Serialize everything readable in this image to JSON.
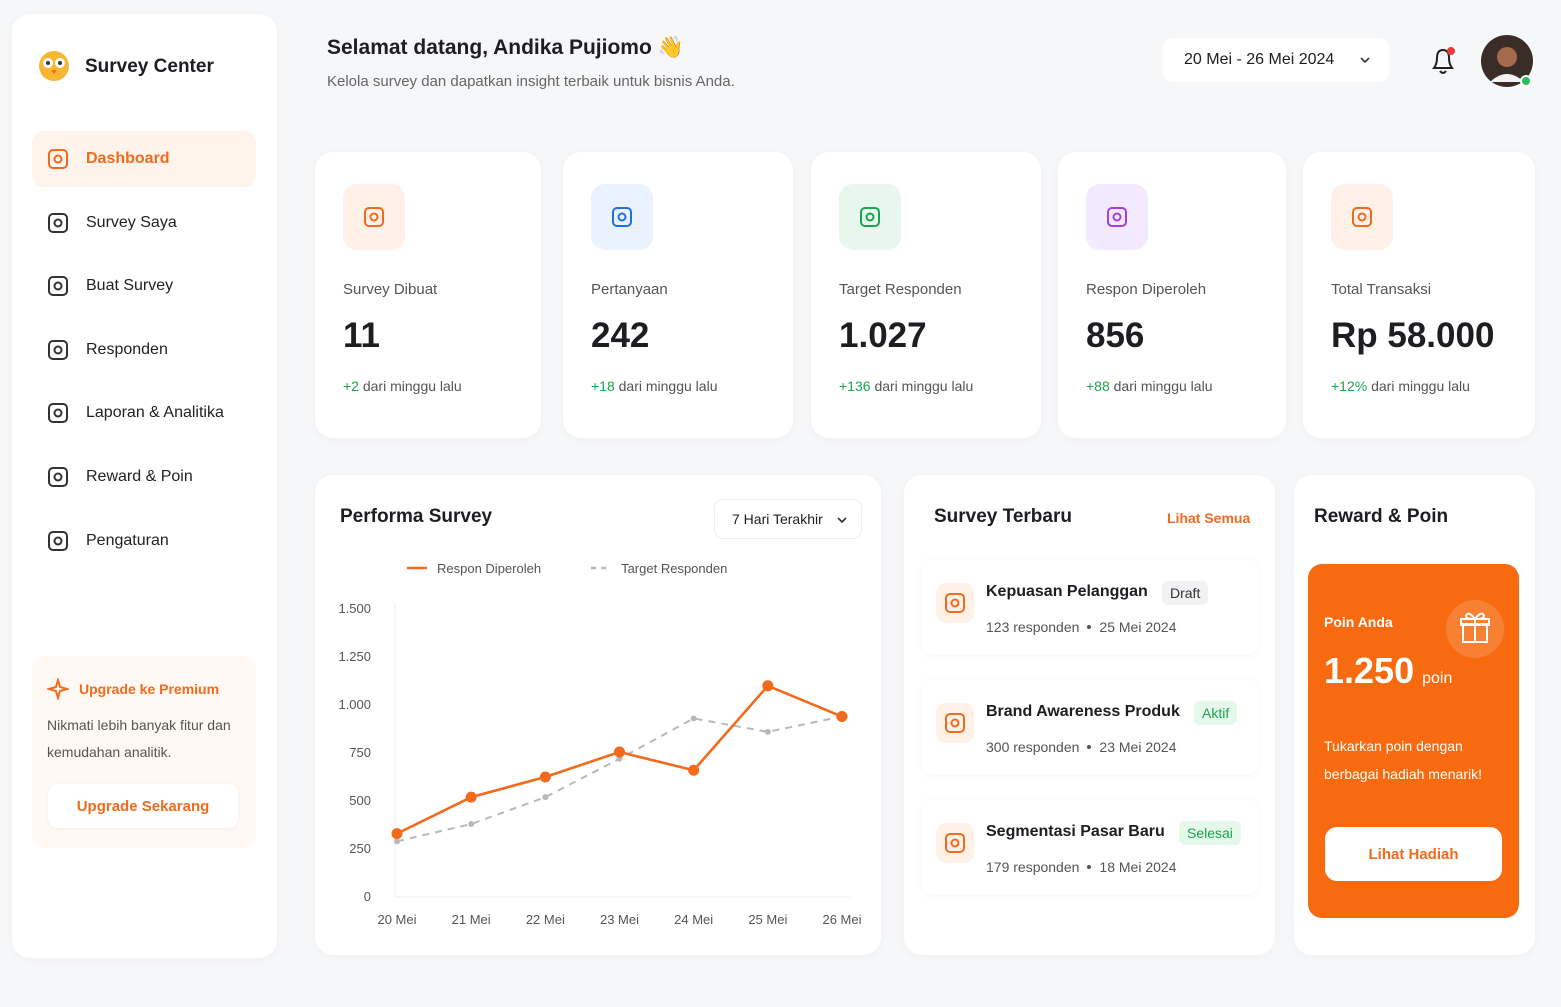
{
  "sidebar": {
    "brand": "Survey Center",
    "menu": [
      "Dashboard",
      "Survey Saya",
      "Buat Survey",
      "Responden",
      "Laporan & Analitika",
      "Reward & Poin",
      "Pengaturan"
    ],
    "promo": {
      "title": "Upgrade ke Premium",
      "text": "Nikmati lebih banyak fitur dan kemudahan analitik.",
      "button": "Upgrade Sekarang"
    }
  },
  "header": {
    "greeting": "Selamat datang, Andika Pujiomo 👋",
    "subtitle": "Kelola survey dan dapatkan insight terbaik untuk bisnis Anda.",
    "date_range": "20 Mei - 26 Mei 2024"
  },
  "stats": [
    {
      "label": "Survey Dibuat",
      "value": "11",
      "change": "+2",
      "note": "dari minggu lalu"
    },
    {
      "label": "Pertanyaan",
      "value": "242",
      "change": "+18",
      "note": "dari minggu lalu"
    },
    {
      "label": "Target Responden",
      "value": "1.027",
      "change": "+136",
      "note": "dari minggu lalu"
    },
    {
      "label": "Respon Diperoleh",
      "value": "856",
      "change": "+88",
      "note": "dari minggu lalu"
    },
    {
      "label": "Total Transaksi",
      "value": "Rp 58.000",
      "change": "+12%",
      "note": "dari minggu lalu"
    }
  ],
  "chart_filter": "7 Hari Terakhir",
  "chart_data": {
    "type": "line",
    "title": "Performa Survey",
    "categories": [
      "20 Mei",
      "21 Mei",
      "22 Mei",
      "23 Mei",
      "24 Mei",
      "25 Mei",
      "26 Mei"
    ],
    "series": [
      {
        "name": "Respon Diperoleh",
        "color": "#f26a1b",
        "dashed": false,
        "values": [
          330,
          520,
          625,
          755,
          660,
          1100,
          940
        ]
      },
      {
        "name": "Target Responden",
        "color": "#b9b9bd",
        "dashed": true,
        "values": [
          290,
          380,
          520,
          720,
          930,
          860,
          940
        ]
      }
    ],
    "ylim": [
      0,
      1500
    ],
    "yticks": [
      0,
      250,
      500,
      750,
      {
        "value": 1000,
        "label": "1.000"
      },
      {
        "value": 1250,
        "label": "1.250"
      },
      {
        "value": 1500,
        "label": "1.500"
      }
    ],
    "grid": false,
    "legend": "top"
  },
  "recent": {
    "title": "Survey Terbaru",
    "link": "Lihat Semua",
    "items": [
      {
        "name": "Kepuasan Pelanggan",
        "status": "Draft",
        "responses": "123 responden",
        "date": "25 Mei 2024"
      },
      {
        "name": "Brand Awareness Produk",
        "status": "Aktif",
        "responses": "300 responden",
        "date": "23 Mei 2024"
      },
      {
        "name": "Segmentasi Pasar Baru",
        "status": "Selesai",
        "responses": "179 responden",
        "date": "18 Mei 2024"
      }
    ]
  },
  "reward": {
    "title": "Reward & Poin",
    "label": "Poin Anda",
    "points": "1.250",
    "unit": "poin",
    "text": "Tukarkan poin dengan berbagai hadiah menarik!",
    "button": "Lihat Hadiah"
  }
}
